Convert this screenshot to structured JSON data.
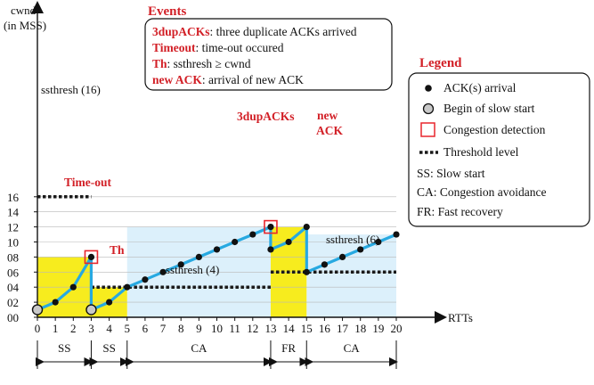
{
  "axes": {
    "y_label_line1": "cwnd",
    "y_label_line2": "(in MSS)",
    "x_label": "RTTs",
    "y_ticks": [
      "00",
      "02",
      "04",
      "06",
      "08",
      "10",
      "12",
      "14",
      "16"
    ],
    "x_ticks": [
      "0",
      "1",
      "2",
      "3",
      "4",
      "5",
      "6",
      "7",
      "8",
      "9",
      "10",
      "11",
      "12",
      "13",
      "14",
      "15",
      "16",
      "17",
      "18",
      "19",
      "20"
    ]
  },
  "events": {
    "title": "Events",
    "items": [
      {
        "term": "3dupACKs",
        "desc": ": three duplicate ACKs arrived"
      },
      {
        "term": "Timeout",
        "desc": ": time-out occured"
      },
      {
        "term": "Th",
        "desc": ": ssthresh ≥  cwnd"
      },
      {
        "term": "new ACK",
        "desc": ": arrival of new ACK"
      }
    ]
  },
  "legend": {
    "title": "Legend",
    "items": [
      {
        "icon": "black-dot",
        "text": "ACK(s) arrival"
      },
      {
        "icon": "grey-circle",
        "text": "Begin of slow start"
      },
      {
        "icon": "red-square",
        "text": "Congestion detection"
      },
      {
        "icon": "dashed-line",
        "text": "Threshold level"
      },
      {
        "icon": "none",
        "text": "SS: Slow start"
      },
      {
        "icon": "none",
        "text": "CA: Congestion avoidance"
      },
      {
        "icon": "none",
        "text": "FR: Fast recovery"
      }
    ]
  },
  "annotations": {
    "timeout": "Time-out",
    "th": "Th",
    "dupacks": "3dupACKs",
    "newack_line1": "new",
    "newack_line2": "ACK",
    "ssthresh_16": "ssthresh (16)",
    "ssthresh_4": "ssthresh (4)",
    "ssthresh_6": "ssthresh (6)"
  },
  "phases": [
    {
      "label": "SS",
      "from": 0,
      "to": 3
    },
    {
      "label": "SS",
      "from": 3,
      "to": 5
    },
    {
      "label": "CA",
      "from": 5,
      "to": 13
    },
    {
      "label": "FR",
      "from": 13,
      "to": 15
    },
    {
      "label": "CA",
      "from": 15,
      "to": 20
    }
  ],
  "chart_data": {
    "type": "line",
    "cwnd": [
      [
        0,
        1
      ],
      [
        1,
        2
      ],
      [
        2,
        4
      ],
      [
        3,
        8
      ],
      [
        3,
        1
      ],
      [
        4,
        2
      ],
      [
        5,
        4
      ],
      [
        6,
        5
      ],
      [
        7,
        6
      ],
      [
        8,
        7
      ],
      [
        9,
        8
      ],
      [
        10,
        9
      ],
      [
        11,
        10
      ],
      [
        12,
        11
      ],
      [
        13,
        12
      ],
      [
        13,
        9
      ],
      [
        14,
        10
      ],
      [
        15,
        12
      ],
      [
        15,
        6
      ],
      [
        16,
        7
      ],
      [
        17,
        8
      ],
      [
        18,
        9
      ],
      [
        19,
        10
      ],
      [
        20,
        11
      ]
    ],
    "slow_start_begin": [
      [
        0,
        1
      ],
      [
        3,
        1
      ]
    ],
    "congestion_detection": [
      [
        3,
        8
      ],
      [
        13,
        12
      ]
    ],
    "thresholds": [
      {
        "value": 16,
        "from": 0,
        "to": 3
      },
      {
        "value": 4,
        "from": 3,
        "to": 13
      },
      {
        "value": 6,
        "from": 13,
        "to": 20
      }
    ],
    "ss_regions": [
      {
        "from": 0,
        "to": 3,
        "top": 8
      },
      {
        "from": 3,
        "to": 5,
        "top": 4
      },
      {
        "from": 13,
        "to": 15,
        "top": 12
      }
    ],
    "ca_regions": [
      {
        "from": 5,
        "to": 13,
        "top": 12
      },
      {
        "from": 15,
        "to": 20,
        "top": 11
      }
    ],
    "xlim": [
      0,
      20
    ],
    "ylim": [
      0,
      16
    ],
    "colors": {
      "line": "#27a9e1",
      "ss_fill": "#f7ec1e",
      "ca_fill": "#dcf0fb",
      "detect": "#e8262d",
      "threshold": "#1a1a1a"
    }
  }
}
